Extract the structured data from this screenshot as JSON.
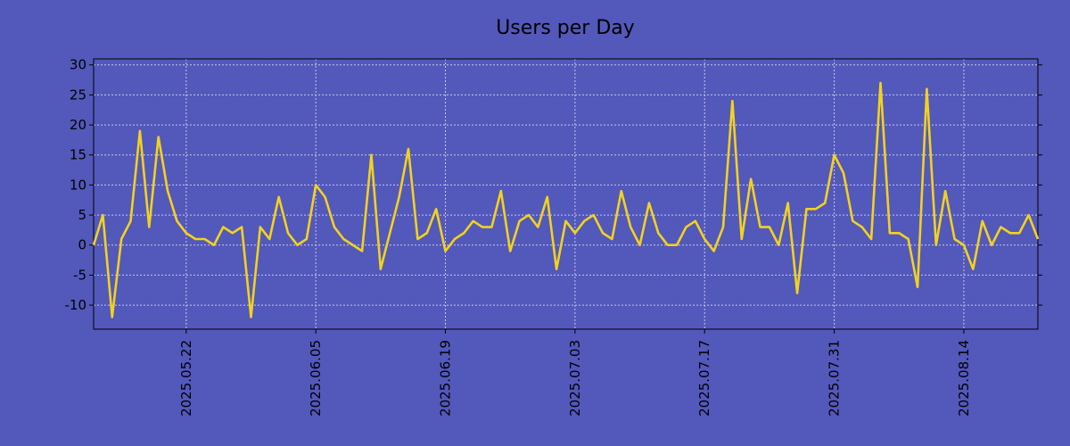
{
  "chart_data": {
    "type": "line",
    "title": "Users per Day",
    "xlabel": "",
    "ylabel": "",
    "x_start": "2025.05.12",
    "x_end": "2025.08.22",
    "ylim": [
      -14,
      31
    ],
    "yticks": [
      -10,
      -5,
      0,
      5,
      10,
      15,
      20,
      25,
      30
    ],
    "xticks": [
      "2025.05.22",
      "2025.06.05",
      "2025.06.19",
      "2025.07.03",
      "2025.07.17",
      "2025.07.31",
      "2025.08.14"
    ],
    "grid": true,
    "colors": {
      "background": "#5358bb",
      "line": "#f2d21e",
      "grid": "#c8c8e6",
      "axis": "#000000"
    },
    "series": [
      {
        "values": [
          0,
          5,
          -12,
          1,
          4,
          19,
          3,
          18,
          9,
          4,
          2,
          1,
          1,
          0,
          3,
          2,
          3,
          -12,
          3,
          1,
          8,
          2,
          0,
          1,
          10,
          8,
          3,
          1,
          0,
          -1,
          15,
          -4,
          2,
          8,
          16,
          1,
          2,
          6,
          -1,
          1,
          2,
          4,
          3,
          3,
          9,
          -1,
          4,
          5,
          3,
          8,
          -4,
          4,
          2,
          4,
          5,
          2,
          1,
          9,
          3,
          0,
          7,
          2,
          0,
          0,
          3,
          4,
          1,
          -1,
          3,
          24,
          1,
          11,
          3,
          3,
          0,
          7,
          -8,
          6,
          6,
          7,
          15,
          12,
          4,
          3,
          1,
          27,
          2,
          2,
          1,
          -7,
          26,
          0,
          9,
          1,
          0,
          -4,
          4,
          0,
          3,
          2,
          2,
          5,
          1
        ]
      }
    ]
  }
}
